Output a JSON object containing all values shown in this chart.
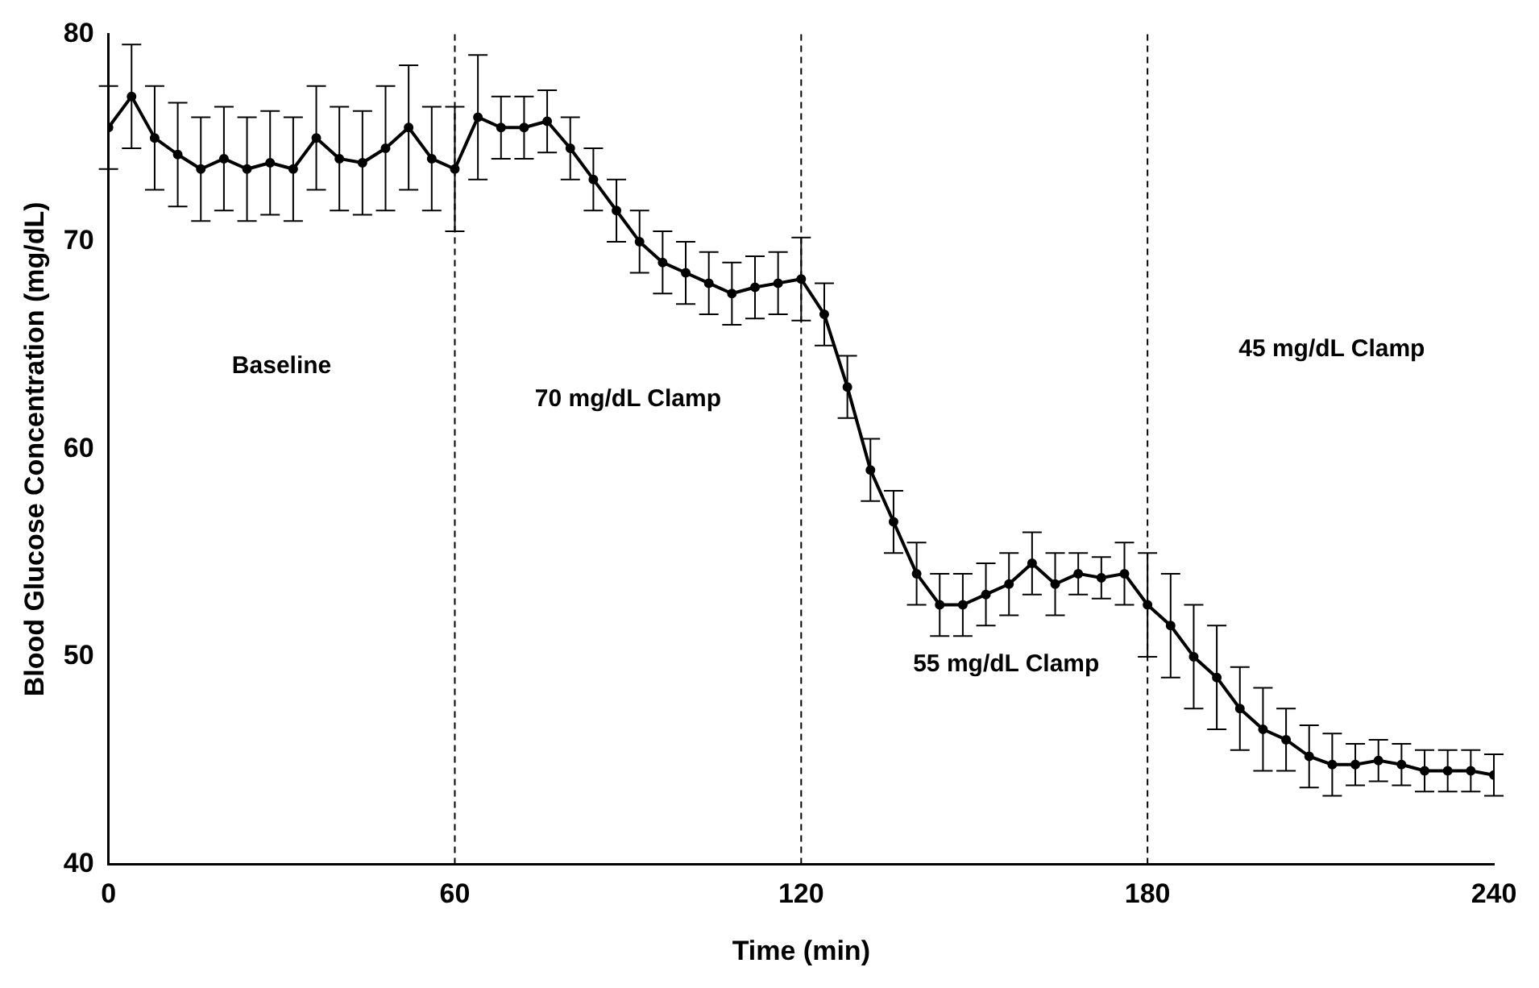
{
  "chart_data": {
    "type": "line",
    "xlabel": "Time (min)",
    "ylabel": "Blood Glucose Concentration (mg/dL)",
    "x": [
      0,
      4,
      8,
      12,
      16,
      20,
      24,
      28,
      32,
      36,
      40,
      44,
      48,
      52,
      56,
      60,
      64,
      68,
      72,
      76,
      80,
      84,
      88,
      92,
      96,
      100,
      104,
      108,
      112,
      116,
      120,
      124,
      128,
      132,
      136,
      140,
      144,
      148,
      152,
      156,
      160,
      164,
      168,
      172,
      176,
      180,
      184,
      188,
      192,
      196,
      200,
      204,
      208,
      212,
      216,
      220,
      224,
      228,
      232,
      236,
      240
    ],
    "series": [
      {
        "color": "#000000",
        "values": [
          75.5,
          77,
          75,
          74.2,
          73.5,
          74,
          73.5,
          73.8,
          73.5,
          75,
          74,
          73.8,
          74.5,
          75.5,
          74,
          73.5,
          76,
          75.5,
          75.5,
          75.8,
          74.5,
          73,
          71.5,
          70,
          69,
          68.5,
          68,
          67.5,
          67.8,
          68,
          68.2,
          66.5,
          63,
          59,
          56.5,
          54,
          52.5,
          52.5,
          53,
          53.5,
          54.5,
          53.5,
          54,
          53.8,
          54,
          52.5,
          51.5,
          50,
          49,
          47.5,
          46.5,
          46,
          45.2,
          44.8,
          44.8,
          45,
          44.8,
          44.5,
          44.5,
          44.5,
          44.3
        ],
        "errors": [
          2,
          2.5,
          2.5,
          2.5,
          2.5,
          2.5,
          2.5,
          2.5,
          2.5,
          2.5,
          2.5,
          2.5,
          3,
          3,
          2.5,
          3,
          3,
          1.5,
          1.5,
          1.5,
          1.5,
          1.5,
          1.5,
          1.5,
          1.5,
          1.5,
          1.5,
          1.5,
          1.5,
          1.5,
          2,
          1.5,
          1.5,
          1.5,
          1.5,
          1.5,
          1.5,
          1.5,
          1.5,
          1.5,
          1.5,
          1.5,
          1,
          1,
          1.5,
          2.5,
          2.5,
          2.5,
          2.5,
          2,
          2,
          1.5,
          1.5,
          1.5,
          1,
          1,
          1,
          1,
          1,
          1,
          1
        ]
      }
    ],
    "xlim": [
      0,
      240
    ],
    "xticks": [
      0,
      60,
      120,
      180,
      240
    ],
    "ylim": [
      40,
      80
    ],
    "yticks": [
      40,
      50,
      60,
      70,
      80
    ],
    "grid": false,
    "legend": false,
    "marker": "circle",
    "line_style": "solid",
    "ref_lines": [
      {
        "axis": "x",
        "value": 60,
        "line_style": "dashed"
      },
      {
        "axis": "x",
        "value": 120,
        "line_style": "dashed"
      },
      {
        "axis": "x",
        "value": 180,
        "line_style": "dashed"
      }
    ],
    "annotations": [
      "Baseline",
      "70 mg/dL Clamp",
      "55 mg/dL Clamp",
      "45 mg/dL Clamp"
    ]
  }
}
